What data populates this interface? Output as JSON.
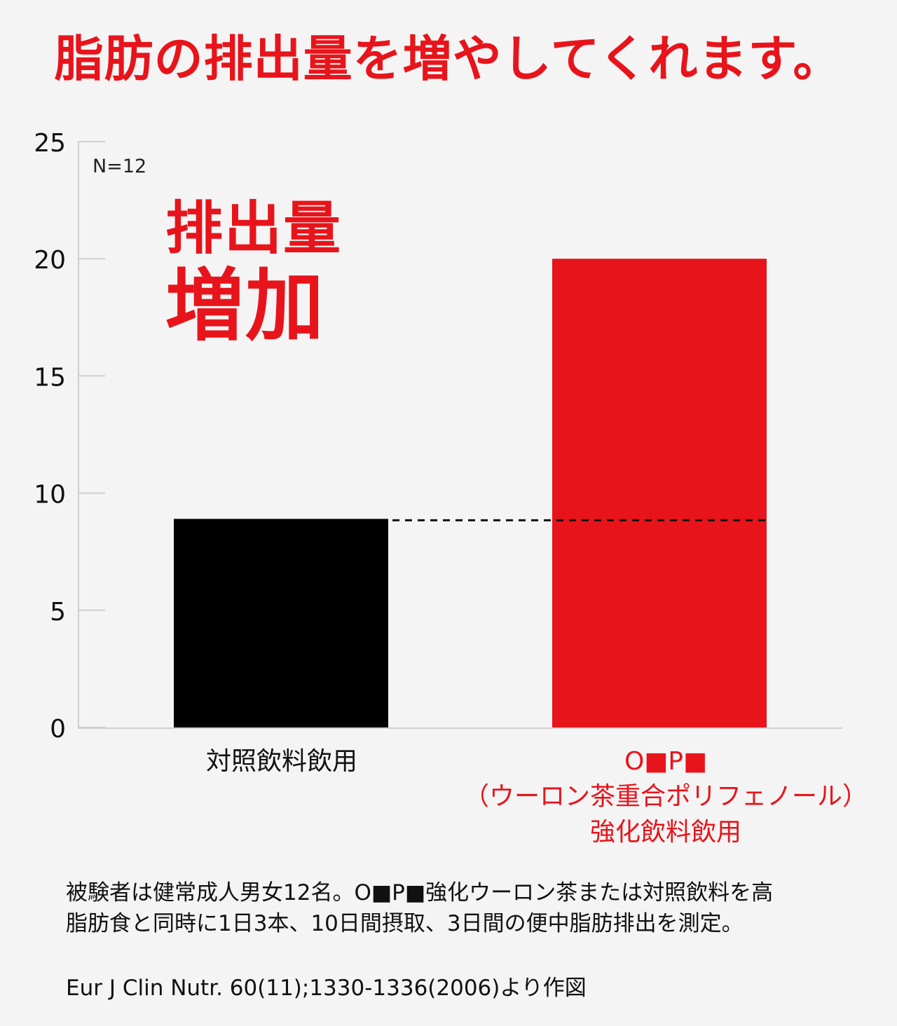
{
  "headline": "脂肪の排出量を増やしてくれます。",
  "callout": {
    "line1": "排出量",
    "line2": "増加"
  },
  "sample_size": "N=12",
  "categories": {
    "control": {
      "lines": [
        "対照飲料飲用"
      ]
    },
    "oolong": {
      "lines": [
        "O■P■",
        "（ウーロン茶重合ポリフェノール）",
        "強化飲料飲用"
      ]
    }
  },
  "note": [
    "被験者は健常成人男女12名。O■P■強化ウーロン茶または対照飲料を高",
    "脂肪食と同時に1日3本、10日間摂取、3日間の便中脂肪排出を測定。"
  ],
  "source": "Eur J Clin Nutr. 60(11);1330-1336(2006)より作図",
  "colors": {
    "accent_red": "#e8141b",
    "control_bar": "#000000",
    "axis": "#cfcfcf",
    "background": "#f4f4f4"
  },
  "chart_data": {
    "type": "bar",
    "categories": [
      "対照飲料飲用",
      "O■P■（ウーロン茶重合ポリフェノール）強化飲料飲用"
    ],
    "values": [
      8.9,
      20.0
    ],
    "bar_colors": [
      "#000000",
      "#e8141b"
    ],
    "yticks": [
      0,
      5,
      10,
      15,
      20,
      25
    ],
    "ylim": [
      0,
      25
    ],
    "reference_line": {
      "value": 8.9,
      "style": "dashed"
    },
    "grid": false
  }
}
